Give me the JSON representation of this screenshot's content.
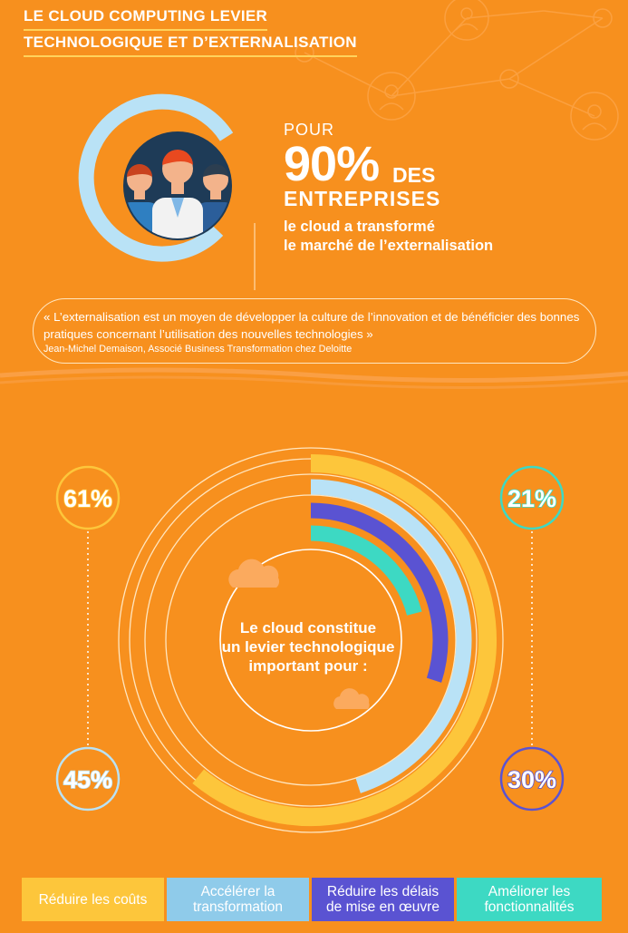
{
  "title": {
    "line1": "LE CLOUD COMPUTING LEVIER",
    "line2": "TECHNOLOGIQUE ET D’EXTERNALISATION"
  },
  "hero": {
    "pour": "POUR",
    "percent": "90%",
    "des": "DES",
    "entreprises": "ENTREPRISES",
    "subtitle_line1": "le cloud a transformé",
    "subtitle_line2": "le marché de l’externalisation",
    "icon": "business-people-icon"
  },
  "quote": {
    "text": "« L’externalisation est un moyen de développer la culture de l’innovation et de bénéficier des bonnes pratiques concernant l’utilisation des nouvelles technologies »",
    "author": "Jean-Michel Demaison, Associé Business Transformation chez Deloitte"
  },
  "chart_data": {
    "type": "radial-bar",
    "title": "Le cloud constitue un levier technologique important pour :",
    "title_lines": [
      "Le cloud constitue",
      "un levier technologique",
      "important pour :"
    ],
    "categories": [
      "Réduire les coûts",
      "Accélérer la transformation",
      "Réduire les délais de mise en œuvre",
      "Améliorer les fonctionnalités"
    ],
    "legend_lines": [
      [
        "Réduire les coûts"
      ],
      [
        "Accélérer la",
        "transformation"
      ],
      [
        "Réduire les délais",
        "de mise en œuvre"
      ],
      [
        "Améliorer les",
        "fonctionnalités"
      ]
    ],
    "values": [
      61,
      45,
      30,
      21
    ],
    "labels": [
      "61%",
      "45%",
      "30%",
      "21%"
    ],
    "colors": [
      "#FDC63B",
      "#B9E2F6",
      "#5A53D2",
      "#3DD9C3"
    ],
    "legend_placement": "bottom"
  },
  "colors": {
    "background": "#F7901E",
    "accent_yellow": "#FFD35C",
    "ring_light_blue": "#B9E2F6",
    "navy": "#1E3B57"
  }
}
